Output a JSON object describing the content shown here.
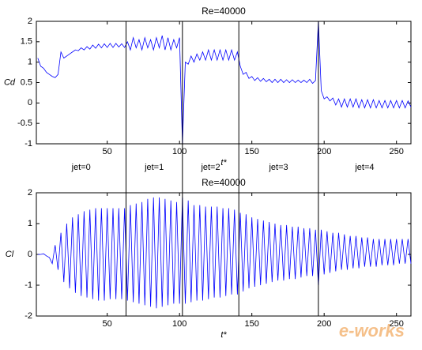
{
  "chart_data": [
    {
      "type": "line",
      "title": "Re=40000",
      "xlabel": "t*",
      "ylabel": "Cd",
      "color": "#0000ff",
      "xlim": [
        1,
        260
      ],
      "xticks": [
        50,
        100,
        150,
        200,
        250
      ],
      "ylim": [
        -1,
        2
      ],
      "yticks": [
        -1,
        -0.5,
        0,
        0.5,
        1,
        1.5,
        2
      ],
      "vlines": [
        63,
        102,
        141,
        196
      ],
      "region_labels": [
        "jet=0",
        "jet=1",
        "jet=2",
        "jet=3",
        "jet=4"
      ],
      "x": [
        2,
        4,
        6,
        8,
        10,
        12,
        14,
        16,
        18,
        20,
        22,
        24,
        26,
        28,
        30,
        32,
        34,
        36,
        38,
        40,
        42,
        44,
        46,
        48,
        50,
        52,
        54,
        56,
        58,
        60,
        62,
        64,
        66,
        68,
        70,
        72,
        74,
        76,
        78,
        80,
        82,
        84,
        86,
        88,
        90,
        92,
        94,
        96,
        98,
        100,
        102,
        104,
        106,
        108,
        110,
        112,
        114,
        116,
        118,
        120,
        122,
        124,
        126,
        128,
        130,
        132,
        134,
        136,
        138,
        140,
        142,
        144,
        146,
        148,
        150,
        152,
        154,
        156,
        158,
        160,
        162,
        164,
        166,
        168,
        170,
        172,
        174,
        176,
        178,
        180,
        182,
        184,
        186,
        188,
        190,
        192,
        194,
        196,
        198,
        200,
        202,
        204,
        206,
        208,
        210,
        212,
        214,
        216,
        218,
        220,
        222,
        224,
        226,
        228,
        230,
        232,
        234,
        236,
        238,
        240,
        242,
        244,
        246,
        248,
        250,
        252,
        254,
        256,
        258,
        260
      ],
      "values": [
        1.1,
        0.9,
        0.85,
        0.75,
        0.7,
        0.65,
        0.62,
        0.7,
        1.25,
        1.1,
        1.15,
        1.2,
        1.25,
        1.3,
        1.28,
        1.35,
        1.3,
        1.38,
        1.32,
        1.42,
        1.34,
        1.44,
        1.35,
        1.45,
        1.36,
        1.46,
        1.36,
        1.46,
        1.37,
        1.45,
        1.36,
        1.5,
        1.3,
        1.6,
        1.35,
        1.55,
        1.3,
        1.6,
        1.35,
        1.55,
        1.3,
        1.6,
        1.35,
        1.65,
        1.3,
        1.6,
        1.3,
        1.55,
        1.35,
        1.6,
        -1.0,
        1.0,
        0.95,
        1.15,
        1.0,
        1.2,
        1.05,
        1.25,
        1.05,
        1.3,
        1.05,
        1.3,
        1.05,
        1.3,
        1.05,
        1.3,
        1.05,
        1.3,
        1.05,
        1.25,
        0.9,
        0.7,
        0.75,
        0.6,
        0.65,
        0.55,
        0.62,
        0.53,
        0.6,
        0.52,
        0.58,
        0.5,
        0.58,
        0.5,
        0.58,
        0.5,
        0.57,
        0.5,
        0.57,
        0.5,
        0.56,
        0.5,
        0.56,
        0.5,
        0.58,
        0.48,
        0.55,
        2.0,
        0.3,
        0.1,
        0.15,
        0.05,
        0.12,
        -0.05,
        0.1,
        -0.1,
        0.1,
        -0.1,
        0.1,
        -0.1,
        0.1,
        -0.12,
        0.08,
        -0.12,
        0.08,
        -0.12,
        0.08,
        -0.12,
        0.06,
        -0.12,
        0.06,
        -0.12,
        0.06,
        -0.12,
        0.06,
        -0.12,
        0.06,
        -0.12,
        0.05,
        -0.1
      ]
    },
    {
      "type": "line",
      "title": "Re=40000",
      "xlabel": "t*",
      "ylabel": "Cl",
      "color": "#0000ff",
      "xlim": [
        1,
        260
      ],
      "xticks": [
        50,
        100,
        150,
        200,
        250
      ],
      "ylim": [
        -2,
        2
      ],
      "yticks": [
        -2,
        -1,
        0,
        1,
        2
      ],
      "watermark": "e-works",
      "x": [
        2,
        4,
        6,
        8,
        10,
        12,
        14,
        16,
        18,
        20,
        22,
        24,
        26,
        28,
        30,
        32,
        34,
        36,
        38,
        40,
        42,
        44,
        46,
        48,
        50,
        52,
        54,
        56,
        58,
        60,
        62,
        64,
        66,
        68,
        70,
        72,
        74,
        76,
        78,
        80,
        82,
        84,
        86,
        88,
        90,
        92,
        94,
        96,
        98,
        100,
        102,
        104,
        106,
        108,
        110,
        112,
        114,
        116,
        118,
        120,
        122,
        124,
        126,
        128,
        130,
        132,
        134,
        136,
        138,
        140,
        142,
        144,
        146,
        148,
        150,
        152,
        154,
        156,
        158,
        160,
        162,
        164,
        166,
        168,
        170,
        172,
        174,
        176,
        178,
        180,
        182,
        184,
        186,
        188,
        190,
        192,
        194,
        196,
        198,
        200,
        202,
        204,
        206,
        208,
        210,
        212,
        214,
        216,
        218,
        220,
        222,
        224,
        226,
        228,
        230,
        232,
        234,
        236,
        238,
        240,
        242,
        244,
        246,
        248,
        250,
        252,
        254,
        256,
        258,
        260
      ],
      "values": [
        0,
        0,
        0.02,
        -0.05,
        -0.1,
        -0.3,
        0.3,
        -0.5,
        0.7,
        -0.9,
        1.0,
        -1.1,
        1.2,
        -1.25,
        1.3,
        -1.35,
        1.4,
        -1.4,
        1.45,
        -1.45,
        1.5,
        -1.5,
        1.5,
        -1.5,
        1.5,
        -1.45,
        1.5,
        -1.45,
        1.5,
        -1.45,
        1.5,
        -1.5,
        1.6,
        -1.55,
        1.65,
        -1.6,
        1.7,
        -1.65,
        1.8,
        -1.7,
        1.85,
        -1.75,
        1.85,
        -1.7,
        1.8,
        -1.65,
        1.75,
        -1.6,
        1.7,
        -1.6,
        1.85,
        -1.6,
        1.75,
        -1.55,
        1.6,
        -1.5,
        1.6,
        -1.5,
        1.55,
        -1.45,
        1.55,
        -1.4,
        1.55,
        -1.4,
        1.5,
        -1.35,
        1.5,
        -1.3,
        1.45,
        -1.3,
        1.35,
        -1.2,
        1.3,
        -1.1,
        1.2,
        -1.05,
        1.15,
        -1.0,
        1.1,
        -0.95,
        1.05,
        -0.9,
        1.0,
        -0.85,
        0.95,
        -0.85,
        0.95,
        -0.8,
        0.9,
        -0.8,
        0.9,
        -0.75,
        0.85,
        -0.7,
        0.85,
        -0.7,
        0.8,
        -1.0,
        0.8,
        -0.65,
        0.75,
        -0.6,
        0.7,
        -0.55,
        0.7,
        -0.5,
        0.65,
        -0.5,
        0.6,
        -0.45,
        0.6,
        -0.45,
        0.55,
        -0.4,
        0.55,
        -0.4,
        0.5,
        -0.4,
        0.5,
        -0.35,
        0.5,
        -0.35,
        0.5,
        -0.35,
        0.5,
        -0.3,
        0.5,
        -0.3,
        0.5,
        -0.3
      ]
    }
  ]
}
